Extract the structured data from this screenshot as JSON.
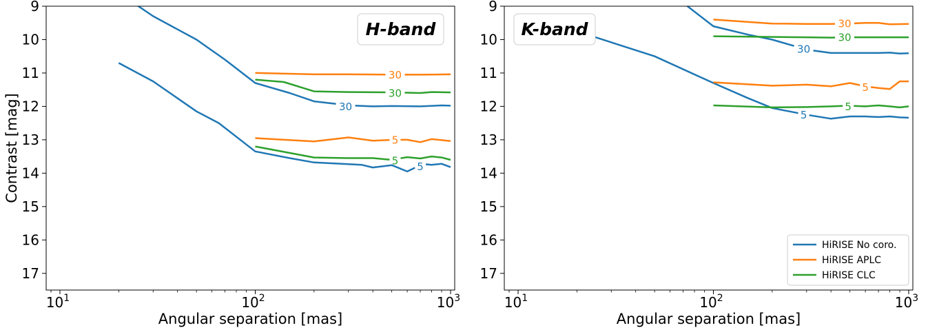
{
  "chart_data": [
    {
      "type": "line",
      "title": "H-band",
      "xlabel": "Angular separation [mas]",
      "ylabel": "Contrast [mag]",
      "xscale": "log",
      "xlim": [
        8.5,
        1050
      ],
      "ylim": [
        17.5,
        9
      ],
      "y_inverted": true,
      "yticks": [
        9,
        10,
        11,
        12,
        13,
        14,
        15,
        16,
        17
      ],
      "xticks": [
        {
          "v": 10,
          "base": "10",
          "exp": "1"
        },
        {
          "v": 100,
          "base": "10",
          "exp": "2"
        },
        {
          "v": 1000,
          "base": "10",
          "exp": "3"
        }
      ],
      "grid": false,
      "legend": null,
      "series": [
        {
          "color": "#1f77b4",
          "label": "30",
          "label_at": [
            290,
            12.0
          ],
          "x": [
            20,
            30,
            50,
            70,
            100,
            150,
            200,
            300,
            400,
            500,
            700,
            900,
            1000
          ],
          "y": [
            8.6,
            9.3,
            10.0,
            10.6,
            11.3,
            11.6,
            11.85,
            11.97,
            12.0,
            11.99,
            12.0,
            11.97,
            11.98
          ]
        },
        {
          "color": "#1f77b4",
          "label": "5",
          "label_at": [
            700,
            13.8
          ],
          "x": [
            20,
            30,
            50,
            65,
            100,
            150,
            200,
            300,
            350,
            400,
            500,
            600,
            650,
            700,
            800,
            900,
            1000
          ],
          "y": [
            10.7,
            11.25,
            12.15,
            12.5,
            13.35,
            13.55,
            13.68,
            13.73,
            13.75,
            13.83,
            13.76,
            13.95,
            13.85,
            13.72,
            13.75,
            13.72,
            13.82
          ]
        },
        {
          "color": "#ff7f0e",
          "label": "30",
          "label_at": [
            520,
            11.05
          ],
          "x": [
            100,
            200,
            300,
            500,
            700,
            1000
          ],
          "y": [
            11.0,
            11.04,
            11.04,
            11.05,
            11.05,
            11.04
          ]
        },
        {
          "color": "#ff7f0e",
          "label": "5",
          "label_at": [
            520,
            13.0
          ],
          "x": [
            100,
            200,
            300,
            400,
            500,
            600,
            700,
            800,
            1000
          ],
          "y": [
            12.95,
            13.05,
            12.93,
            13.03,
            13.0,
            13.0,
            13.07,
            12.98,
            13.04
          ]
        },
        {
          "color": "#2ca02c",
          "label": "30",
          "label_at": [
            520,
            11.6
          ],
          "x": [
            100,
            140,
            200,
            300,
            500,
            700,
            800,
            1000
          ],
          "y": [
            11.2,
            11.27,
            11.55,
            11.57,
            11.58,
            11.6,
            11.57,
            11.58
          ]
        },
        {
          "color": "#2ca02c",
          "label": "5",
          "label_at": [
            520,
            13.62
          ],
          "x": [
            100,
            200,
            300,
            400,
            500,
            600,
            700,
            800,
            900,
            1000
          ],
          "y": [
            13.2,
            13.53,
            13.55,
            13.55,
            13.6,
            13.52,
            13.56,
            13.5,
            13.53,
            13.6
          ]
        }
      ]
    },
    {
      "type": "line",
      "title": "K-band",
      "xlabel": "Angular separation [mas]",
      "ylabel": "",
      "xscale": "log",
      "xlim": [
        8.5,
        1050
      ],
      "ylim": [
        17.5,
        9
      ],
      "y_inverted": true,
      "yticks": [
        9,
        10,
        11,
        12,
        13,
        14,
        15,
        16,
        17
      ],
      "xticks": [
        {
          "v": 10,
          "base": "10",
          "exp": "1"
        },
        {
          "v": 100,
          "base": "10",
          "exp": "2"
        },
        {
          "v": 1000,
          "base": "10",
          "exp": "3"
        }
      ],
      "grid": false,
      "legend": {
        "position": "lower-right",
        "entries": [
          {
            "label": "HiRISE No coro.",
            "color": "#1f77b4"
          },
          {
            "label": "HiRISE APLC",
            "color": "#ff7f0e"
          },
          {
            "label": "HiRISE CLC",
            "color": "#2ca02c"
          }
        ]
      },
      "series": [
        {
          "color": "#1f77b4",
          "label": "30",
          "label_at": [
            290,
            10.28
          ],
          "x": [
            70,
            100,
            150,
            200,
            300,
            400,
            500,
            700,
            800,
            900,
            1000
          ],
          "y": [
            8.9,
            9.6,
            9.85,
            10.0,
            10.3,
            10.4,
            10.4,
            10.4,
            10.39,
            10.42,
            10.41
          ],
          "label_gap": [
            250,
            330
          ]
        },
        {
          "color": "#1f77b4",
          "label": "5",
          "label_at": [
            290,
            12.25
          ],
          "x": [
            20,
            50,
            100,
            150,
            200,
            300,
            400,
            500,
            600,
            700,
            800,
            900,
            1000
          ],
          "y": [
            9.75,
            10.5,
            11.3,
            11.75,
            12.05,
            12.25,
            12.37,
            12.3,
            12.3,
            12.32,
            12.3,
            12.33,
            12.34
          ],
          "label_gap": [
            260,
            320
          ]
        },
        {
          "color": "#ff7f0e",
          "label": "30",
          "label_at": [
            470,
            9.52
          ],
          "x": [
            100,
            200,
            300,
            400,
            500,
            600,
            700,
            800,
            1000
          ],
          "y": [
            9.4,
            9.52,
            9.53,
            9.53,
            9.52,
            9.5,
            9.5,
            9.54,
            9.53
          ]
        },
        {
          "color": "#ff7f0e",
          "label": "5",
          "label_at": [
            600,
            11.42
          ],
          "x": [
            100,
            200,
            300,
            400,
            500,
            600,
            700,
            800,
            900,
            1000
          ],
          "y": [
            11.28,
            11.38,
            11.35,
            11.4,
            11.3,
            11.4,
            11.45,
            11.48,
            11.25,
            11.25
          ]
        },
        {
          "color": "#2ca02c",
          "label": "30",
          "label_at": [
            470,
            9.93
          ],
          "x": [
            100,
            200,
            300,
            400,
            500,
            700,
            1000
          ],
          "y": [
            9.9,
            9.92,
            9.93,
            9.94,
            9.93,
            9.93,
            9.93
          ]
        },
        {
          "color": "#2ca02c",
          "label": "5",
          "label_at": [
            490,
            12.0
          ],
          "x": [
            100,
            200,
            300,
            400,
            500,
            600,
            700,
            800,
            900,
            1000
          ],
          "y": [
            11.97,
            12.03,
            12.02,
            12.0,
            11.98,
            12.0,
            11.97,
            12.0,
            12.03,
            12.0
          ]
        }
      ]
    }
  ]
}
